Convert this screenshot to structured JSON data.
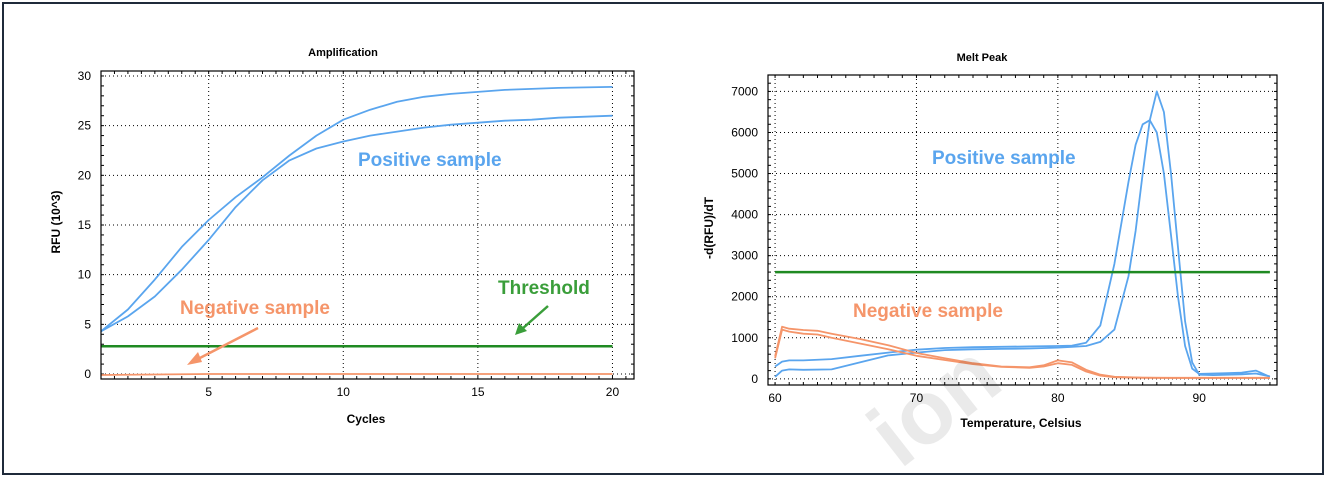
{
  "colors": {
    "positive": "#5aa5ee",
    "negative": "#f5956a",
    "threshold": "#1f8a22",
    "threshold_label": "#3a9e3a",
    "grid": "#000000"
  },
  "watermark": "ion",
  "chart_data": [
    {
      "type": "line",
      "title": "Amplification",
      "xlabel": "Cycles",
      "ylabel": "RFU (10^3)",
      "xlim": [
        1,
        20.8
      ],
      "ylim": [
        -0.5,
        30.5
      ],
      "xticks": [
        5,
        10,
        15,
        20
      ],
      "yticks": [
        0,
        5,
        10,
        15,
        20,
        25,
        30
      ],
      "grid": "dotted",
      "series": [
        {
          "role": "positive",
          "x": [
            1,
            2,
            3,
            4,
            5,
            6,
            7,
            8,
            9,
            10,
            11,
            12,
            13,
            14,
            15,
            16,
            17,
            18,
            19,
            20
          ],
          "y": [
            4.3,
            6.5,
            9.5,
            12.8,
            15.5,
            17.8,
            19.8,
            22.0,
            24.0,
            25.6,
            26.6,
            27.4,
            27.9,
            28.2,
            28.4,
            28.6,
            28.7,
            28.8,
            28.85,
            28.9
          ]
        },
        {
          "role": "positive",
          "x": [
            1,
            2,
            3,
            4,
            5,
            6,
            7,
            8,
            9,
            10,
            11,
            12,
            13,
            14,
            15,
            16,
            17,
            18,
            19,
            20
          ],
          "y": [
            4.3,
            5.8,
            7.8,
            10.5,
            13.5,
            16.8,
            19.5,
            21.5,
            22.7,
            23.4,
            24.0,
            24.4,
            24.8,
            25.1,
            25.3,
            25.5,
            25.6,
            25.8,
            25.9,
            26.0
          ]
        },
        {
          "role": "negative",
          "x": [
            1,
            5,
            10,
            15,
            20
          ],
          "y": [
            -0.1,
            0.0,
            0.0,
            0.0,
            0.0
          ]
        },
        {
          "role": "threshold",
          "x": [
            1,
            20
          ],
          "y": [
            2.8,
            2.8
          ]
        }
      ],
      "annotations": {
        "positive": "Positive sample",
        "negative": "Negative sample",
        "threshold": "Threshold"
      }
    },
    {
      "type": "line",
      "title": "Melt Peak",
      "xlabel": "Temperature, Celsius",
      "ylabel": "-d(RFU)/dT",
      "xlim": [
        59.5,
        95.5
      ],
      "ylim": [
        -150,
        7400
      ],
      "xticks": [
        60,
        70,
        80,
        90
      ],
      "yticks": [
        0,
        1000,
        2000,
        3000,
        4000,
        5000,
        6000,
        7000
      ],
      "grid": "dotted",
      "series": [
        {
          "role": "positive",
          "x": [
            60,
            60.5,
            61,
            62,
            64,
            66,
            68,
            70,
            72,
            74,
            76,
            78,
            80,
            81,
            82,
            83,
            84,
            85,
            85.5,
            86,
            86.5,
            87,
            87.5,
            88,
            88.5,
            89,
            89.5,
            90,
            91,
            92,
            93,
            94,
            95
          ],
          "y": [
            300,
            420,
            450,
            450,
            480,
            560,
            640,
            710,
            750,
            770,
            780,
            790,
            800,
            810,
            880,
            1300,
            2800,
            4800,
            5700,
            6200,
            6300,
            6000,
            5000,
            3500,
            2000,
            800,
            250,
            120,
            130,
            140,
            150,
            200,
            50
          ]
        },
        {
          "role": "positive",
          "x": [
            60,
            60.5,
            61,
            62,
            64,
            66,
            68,
            70,
            72,
            74,
            76,
            78,
            80,
            81,
            82,
            83,
            84,
            85,
            85.5,
            86,
            86.5,
            87,
            87.5,
            88,
            88.5,
            89,
            89.5,
            90,
            91,
            92,
            93,
            94,
            95
          ],
          "y": [
            50,
            200,
            230,
            220,
            230,
            400,
            570,
            640,
            700,
            720,
            730,
            740,
            760,
            780,
            800,
            900,
            1200,
            2500,
            3600,
            5000,
            6300,
            7000,
            6500,
            5000,
            3200,
            1400,
            400,
            100,
            90,
            100,
            110,
            130,
            60
          ]
        },
        {
          "role": "negative",
          "x": [
            60,
            60.5,
            61,
            62,
            63,
            64,
            66,
            68,
            70,
            72,
            74,
            76,
            78,
            79,
            80,
            81,
            82,
            83,
            84,
            86,
            88,
            90,
            92,
            94,
            95
          ],
          "y": [
            500,
            1200,
            1150,
            1100,
            1080,
            1000,
            860,
            720,
            560,
            460,
            360,
            290,
            270,
            300,
            380,
            340,
            180,
            80,
            40,
            25,
            20,
            20,
            20,
            20,
            20
          ]
        },
        {
          "role": "negative",
          "x": [
            60,
            60.5,
            61,
            62,
            63,
            64,
            66,
            68,
            70,
            72,
            74,
            76,
            78,
            79,
            80,
            81,
            82,
            83,
            84,
            86,
            88,
            90,
            92,
            94,
            95
          ],
          "y": [
            550,
            1270,
            1220,
            1190,
            1170,
            1100,
            970,
            820,
            630,
            500,
            380,
            300,
            280,
            330,
            450,
            400,
            220,
            100,
            50,
            30,
            25,
            25,
            25,
            25,
            25
          ]
        },
        {
          "role": "threshold",
          "x": [
            60,
            95
          ],
          "y": [
            2600,
            2600
          ]
        }
      ],
      "annotations": {
        "positive": "Positive sample",
        "negative": "Negative sample"
      }
    }
  ]
}
